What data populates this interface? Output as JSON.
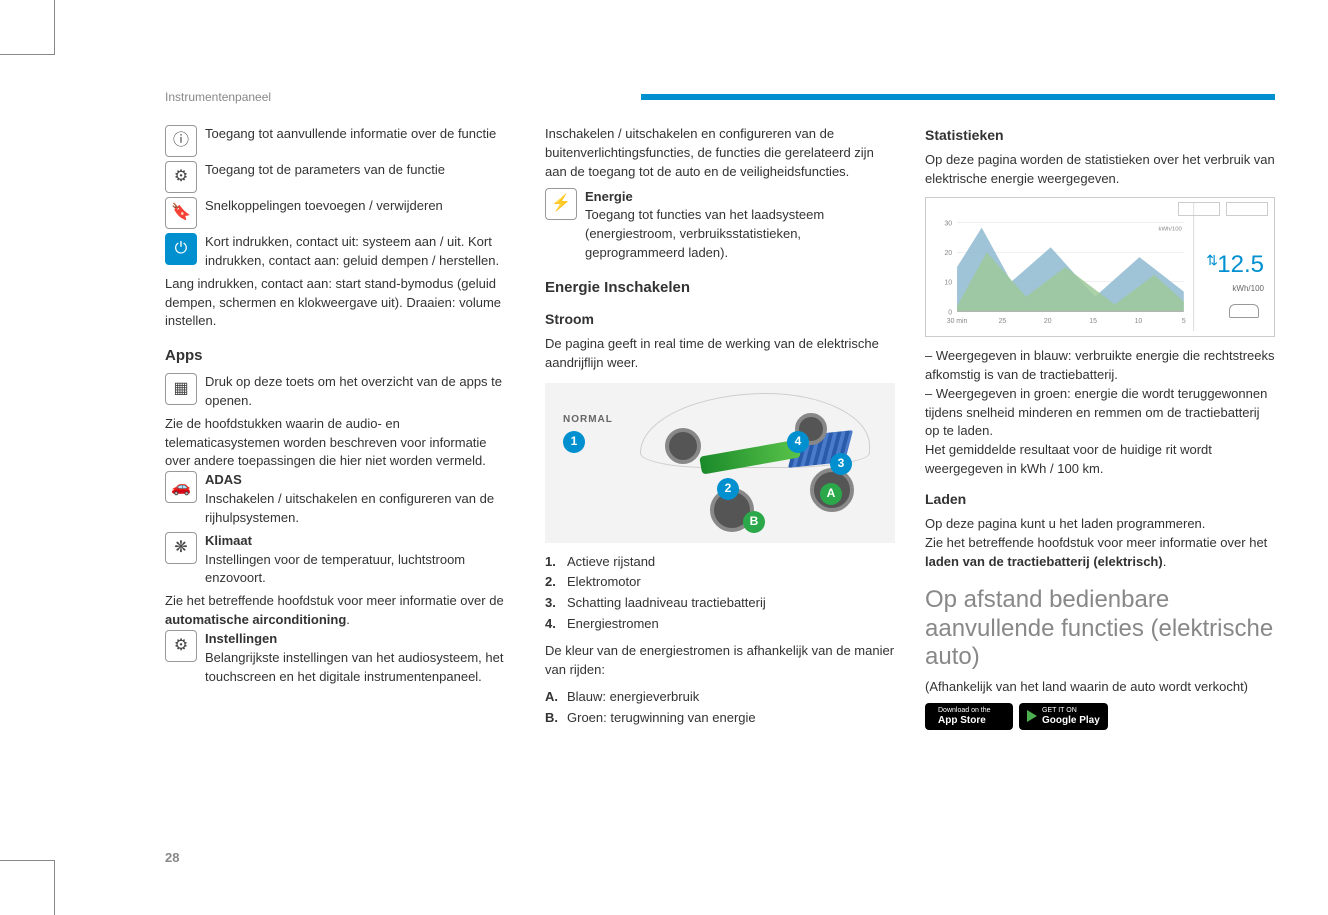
{
  "header": {
    "title": "Instrumentenpaneel"
  },
  "page_number": "28",
  "col1": {
    "icons": [
      {
        "glyph": "ⓘ",
        "text": "Toegang tot aanvullende informatie over de functie"
      },
      {
        "glyph": "⚙",
        "text": "Toegang tot de parameters van de functie"
      },
      {
        "glyph": "🔖",
        "text": "Snelkoppelingen toevoegen / verwijderen"
      },
      {
        "glyph": "⏻",
        "blue": true,
        "text": "Kort indrukken, contact uit: systeem aan / uit. Kort indrukken, contact aan: geluid dempen / herstellen."
      }
    ],
    "after_icons": "Lang indrukken, contact aan: start stand-bymodus (geluid dempen, schermen en klokweergave uit). Draaien: volume instellen.",
    "apps_heading": "Apps",
    "apps_icon_glyph": "▦",
    "apps_icon_text": "Druk op deze toets om het overzicht van de apps te openen.",
    "apps_para": "Zie de hoofdstukken waarin de audio- en telematicasystemen worden beschreven voor informatie over andere toepassingen die hier niet worden vermeld.",
    "adas_title": "ADAS",
    "adas_glyph": "🚗",
    "adas_text": "Inschakelen / uitschakelen en configureren van de rijhulpsystemen.",
    "klimaat_title": "Klimaat",
    "klimaat_glyph": "❋",
    "klimaat_text": "Instellingen voor de temperatuur, luchtstroom enzovoort.",
    "klimaat_note_pre": "Zie het betreffende hoofdstuk voor meer informatie over de ",
    "klimaat_note_bold": "automatische airconditioning",
    "instellingen_title": "Instellingen",
    "instellingen_glyph": "⚙",
    "instellingen_text": "Belangrijkste instellingen van het audiosysteem, het touchscreen en het digitale instrumentenpaneel."
  },
  "col2": {
    "intro": "Inschakelen / uitschakelen en configureren van de buitenverlichtingsfuncties, de functies die gerelateerd zijn aan de toegang tot de auto en de veiligheidsfuncties.",
    "energie_title": "Energie",
    "energie_glyph": "⚡",
    "energie_text": "Toegang tot functies van het laadsysteem (energiestroom, verbruiksstatistieken, geprogrammeerd laden).",
    "section_heading": "Energie Inschakelen",
    "stroom_heading": "Stroom",
    "stroom_intro": "De pagina geeft in real time de werking van de elektrische aandrijflijn weer.",
    "diagram_mode_label": "NORMAL",
    "list_num": [
      {
        "n": "1.",
        "t": "Actieve rijstand"
      },
      {
        "n": "2.",
        "t": "Elektromotor"
      },
      {
        "n": "3.",
        "t": "Schatting laadniveau tractiebatterij"
      },
      {
        "n": "4.",
        "t": "Energiestromen"
      }
    ],
    "color_intro": "De kleur van de energiestromen is afhankelijk van de manier van rijden:",
    "list_let": [
      {
        "n": "A.",
        "t": "Blauw: energieverbruik"
      },
      {
        "n": "B.",
        "t": "Groen: terugwinning van energie"
      }
    ]
  },
  "col3": {
    "stat_heading": "Statistieken",
    "stat_intro": "Op deze pagina worden de statistieken over het verbruik van elektrische energie weergegeven.",
    "chart": {
      "value": "12.5",
      "unit": "kWh/100",
      "y_ticks": [
        "30",
        "20",
        "10",
        "0"
      ],
      "x_ticks": [
        "30 min",
        "25",
        "20",
        "15",
        "10",
        "5"
      ],
      "y_label": "kWh/100",
      "blue_area_color": "#8eb8d0",
      "green_area_color": "#9ec99a",
      "axis_color": "#aaaaaa",
      "accent_color": "#0090d0",
      "blue_points": [
        [
          0,
          70
        ],
        [
          25,
          30
        ],
        [
          55,
          85
        ],
        [
          95,
          50
        ],
        [
          140,
          100
        ],
        [
          185,
          60
        ],
        [
          230,
          95
        ],
        [
          230,
          115
        ],
        [
          0,
          115
        ]
      ],
      "green_points": [
        [
          0,
          110
        ],
        [
          30,
          55
        ],
        [
          70,
          100
        ],
        [
          110,
          70
        ],
        [
          160,
          108
        ],
        [
          200,
          78
        ],
        [
          230,
          105
        ],
        [
          230,
          115
        ],
        [
          0,
          115
        ]
      ]
    },
    "legend_blue": "– Weergegeven in blauw: verbruikte energie die rechtstreeks afkomstig is van de tractiebatterij.",
    "legend_green": "– Weergegeven in groen: energie die wordt teruggewonnen tijdens snelheid minderen en remmen om de tractiebatterij op te laden.",
    "legend_avg": "Het gemiddelde resultaat voor de huidige rit wordt weergegeven in kWh / 100 km.",
    "laden_heading": "Laden",
    "laden_p1": "Op deze pagina kunt u het laden programmeren.",
    "laden_p2_pre": "Zie het betreffende hoofdstuk voor meer informatie over het ",
    "laden_p2_bold": "laden van de tractiebatterij (elektrisch)",
    "big_heading": "Op afstand bedienbare aanvullende functies (elektrische auto)",
    "subnote": "(Afhankelijk van het land waarin de auto wordt verkocht)",
    "store": {
      "apple_top": "Download on the",
      "apple_big": "App Store",
      "google_top": "GET IT ON",
      "google_big": "Google Play"
    }
  }
}
